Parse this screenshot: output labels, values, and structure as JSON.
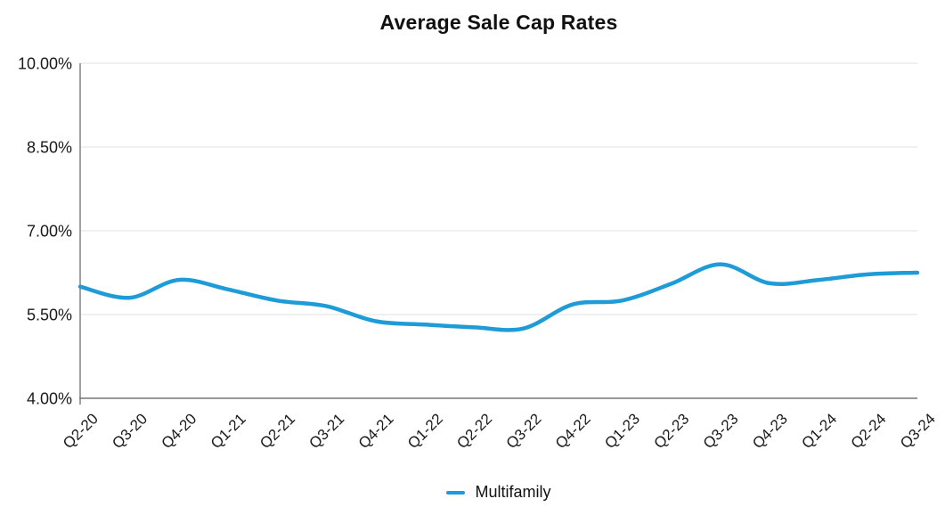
{
  "page": {
    "background": "#ffffff"
  },
  "chart_data": {
    "type": "line",
    "title": "Average Sale Cap Rates",
    "categories": [
      "Q2-20",
      "Q3-20",
      "Q4-20",
      "Q1-21",
      "Q2-21",
      "Q3-21",
      "Q4-21",
      "Q1-22",
      "Q2-22",
      "Q3-22",
      "Q4-22",
      "Q1-23",
      "Q2-23",
      "Q3-23",
      "Q4-23",
      "Q1-24",
      "Q2-24",
      "Q3-24"
    ],
    "series": [
      {
        "name": "Multifamily",
        "color": "#1f9bd7",
        "values": [
          6.0,
          5.8,
          6.12,
          5.95,
          5.75,
          5.65,
          5.38,
          5.32,
          5.27,
          5.25,
          5.68,
          5.75,
          6.05,
          6.4,
          6.06,
          6.12,
          6.22,
          6.25
        ]
      }
    ],
    "ylim": [
      4.0,
      10.0
    ],
    "yticks": [
      {
        "value": 10.0,
        "label": "10.00%"
      },
      {
        "value": 8.5,
        "label": "8.50%"
      },
      {
        "value": 7.0,
        "label": "7.00%"
      },
      {
        "value": 5.5,
        "label": "5.50%"
      },
      {
        "value": 4.0,
        "label": "4.00%"
      }
    ],
    "grid": "horizontal",
    "legend_position": "bottom",
    "axis_color": "#74777a",
    "grid_color": "#e7e7e7",
    "text_color": "#1a1a1a",
    "line_width": 4.5
  }
}
